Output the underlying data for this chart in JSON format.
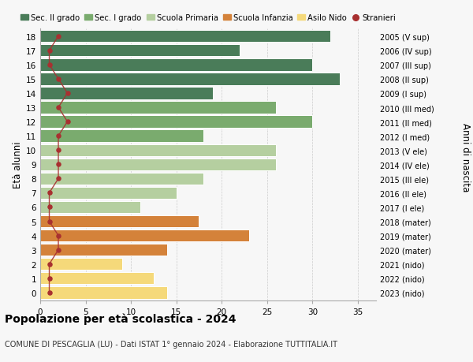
{
  "ages": [
    18,
    17,
    16,
    15,
    14,
    13,
    12,
    11,
    10,
    9,
    8,
    7,
    6,
    5,
    4,
    3,
    2,
    1,
    0
  ],
  "right_labels": [
    "2005 (V sup)",
    "2006 (IV sup)",
    "2007 (III sup)",
    "2008 (II sup)",
    "2009 (I sup)",
    "2010 (III med)",
    "2011 (II med)",
    "2012 (I med)",
    "2013 (V ele)",
    "2014 (IV ele)",
    "2015 (III ele)",
    "2016 (II ele)",
    "2017 (I ele)",
    "2018 (mater)",
    "2019 (mater)",
    "2020 (mater)",
    "2021 (nido)",
    "2022 (nido)",
    "2023 (nido)"
  ],
  "bar_values": [
    32,
    22,
    30,
    33,
    19,
    26,
    30,
    18,
    26,
    26,
    18,
    15,
    11,
    17.5,
    23,
    14,
    9,
    12.5,
    14
  ],
  "bar_colors": [
    "#4a7c59",
    "#4a7c59",
    "#4a7c59",
    "#4a7c59",
    "#4a7c59",
    "#7aab6e",
    "#7aab6e",
    "#7aab6e",
    "#b5cfa0",
    "#b5cfa0",
    "#b5cfa0",
    "#b5cfa0",
    "#b5cfa0",
    "#d4823a",
    "#d4823a",
    "#d4823a",
    "#f5d97a",
    "#f5d97a",
    "#f5d97a"
  ],
  "stranieri_values": [
    2,
    1,
    1,
    2,
    3,
    2,
    3,
    2,
    2,
    2,
    2,
    1,
    1,
    1,
    2,
    2,
    1,
    1,
    1
  ],
  "legend_labels": [
    "Sec. II grado",
    "Sec. I grado",
    "Scuola Primaria",
    "Scuola Infanzia",
    "Asilo Nido",
    "Stranieri"
  ],
  "legend_colors": [
    "#4a7c59",
    "#7aab6e",
    "#b5cfa0",
    "#d4823a",
    "#f5d97a",
    "#c0392b"
  ],
  "ylabel": "Età alunni",
  "right_ylabel": "Anni di nascita",
  "title": "Popolazione per età scolastica - 2024",
  "subtitle": "COMUNE DI PESCAGLIA (LU) - Dati ISTAT 1° gennaio 2024 - Elaborazione TUTTITALIA.IT",
  "xlim": [
    0,
    37
  ],
  "xticks": [
    0,
    5,
    10,
    15,
    20,
    25,
    30,
    35
  ],
  "background_color": "#f7f7f7",
  "grid_color": "#cccccc",
  "stranieri_color": "#a83030",
  "stranieri_line_color": "#a83030"
}
